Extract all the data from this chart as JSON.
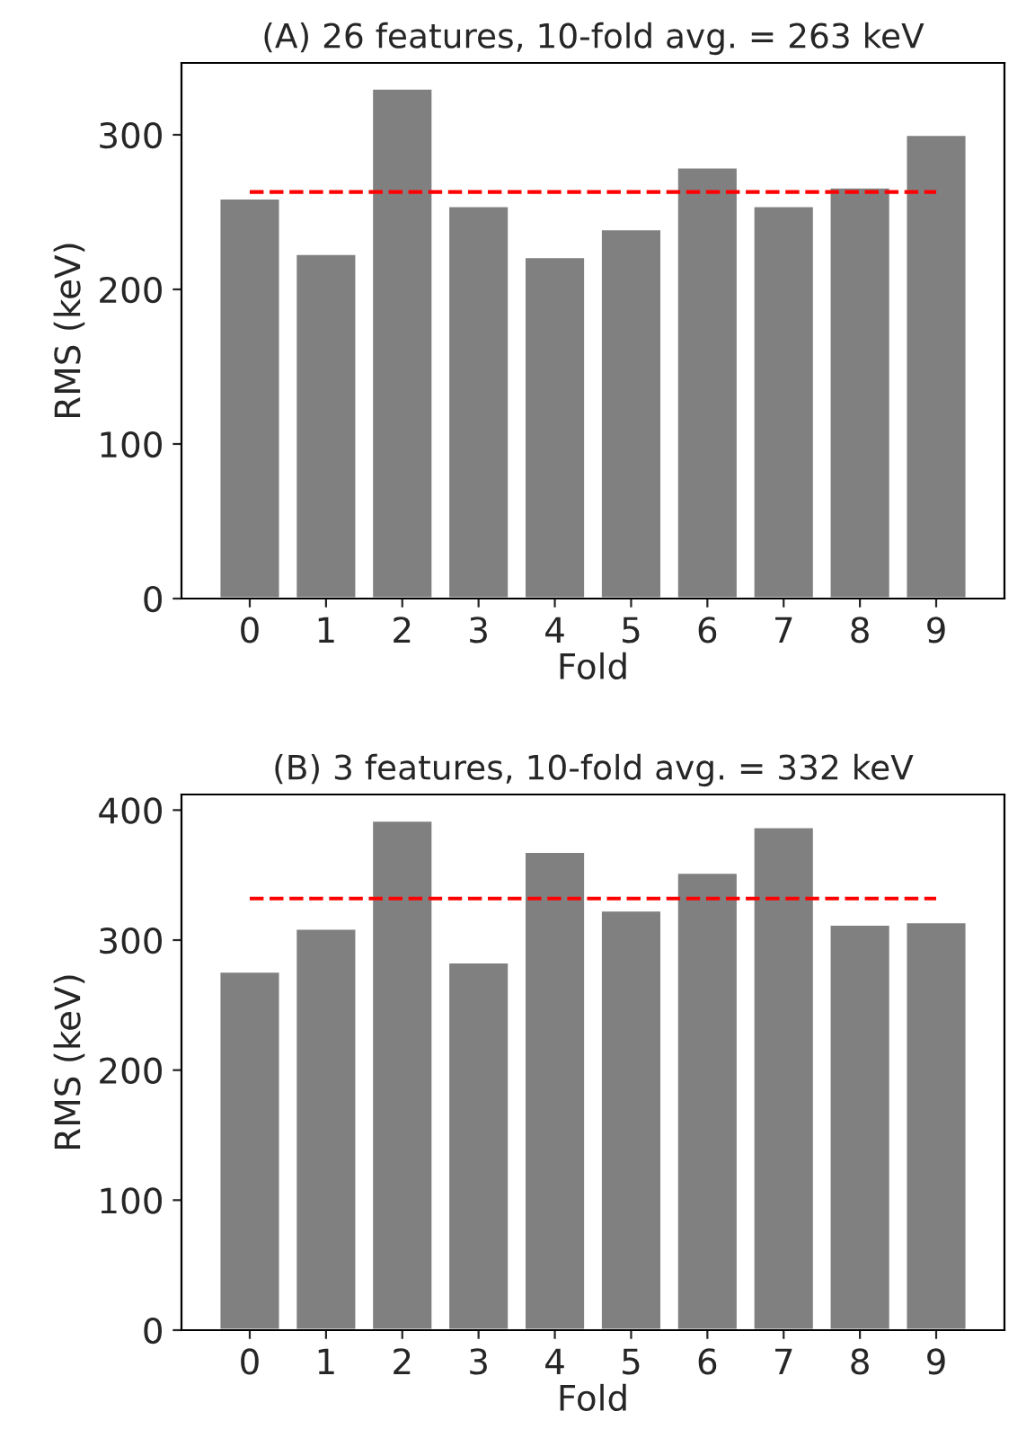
{
  "chart_data": [
    {
      "type": "bar",
      "title": "(A) 26 features, 10-fold avg. = 263 keV",
      "xlabel": "Fold",
      "ylabel": "RMS (keV)",
      "categories": [
        "0",
        "1",
        "2",
        "3",
        "4",
        "5",
        "6",
        "7",
        "8",
        "9"
      ],
      "values": [
        259,
        223,
        330,
        254,
        221,
        239,
        279,
        254,
        266,
        300
      ],
      "color": "#808080",
      "ylim": [
        0,
        346.5
      ],
      "yticks": [
        0,
        100,
        200,
        300
      ],
      "grid": false,
      "legend": false,
      "ref_lines": [
        {
          "axis": "y",
          "value": 263,
          "color": "#ff0000",
          "line_style": "dashed"
        }
      ]
    },
    {
      "type": "bar",
      "title": "(B) 3 features, 10-fold avg. = 332 keV",
      "xlabel": "Fold",
      "ylabel": "RMS (keV)",
      "categories": [
        "0",
        "1",
        "2",
        "3",
        "4",
        "5",
        "6",
        "7",
        "8",
        "9"
      ],
      "values": [
        276,
        309,
        392,
        283,
        368,
        323,
        352,
        387,
        312,
        314
      ],
      "color": "#808080",
      "ylim": [
        0,
        412
      ],
      "yticks": [
        0,
        100,
        200,
        300,
        400
      ],
      "grid": false,
      "legend": false,
      "ref_lines": [
        {
          "axis": "y",
          "value": 332,
          "color": "#ff0000",
          "line_style": "dashed"
        }
      ]
    }
  ]
}
